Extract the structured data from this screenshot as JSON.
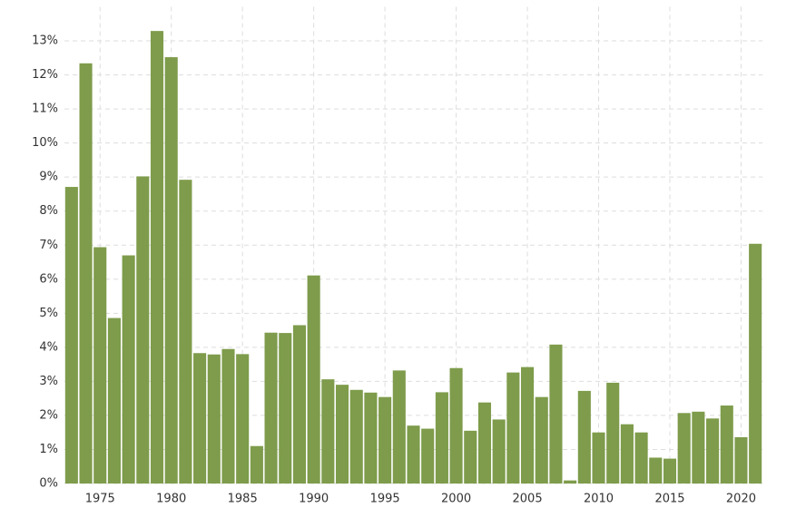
{
  "chart_data": {
    "type": "bar",
    "x": [
      1973,
      1974,
      1975,
      1976,
      1977,
      1978,
      1979,
      1980,
      1981,
      1982,
      1983,
      1984,
      1985,
      1986,
      1987,
      1988,
      1989,
      1990,
      1991,
      1992,
      1993,
      1994,
      1995,
      1996,
      1997,
      1998,
      1999,
      2000,
      2001,
      2002,
      2003,
      2004,
      2005,
      2006,
      2007,
      2008,
      2009,
      2010,
      2011,
      2012,
      2013,
      2014,
      2015,
      2016,
      2017,
      2018,
      2019,
      2020,
      2021
    ],
    "values": [
      8.71,
      12.34,
      6.94,
      4.86,
      6.7,
      9.02,
      13.29,
      12.52,
      8.92,
      3.83,
      3.79,
      3.95,
      3.8,
      1.1,
      4.43,
      4.42,
      4.65,
      6.11,
      3.06,
      2.9,
      2.75,
      2.67,
      2.54,
      3.32,
      1.7,
      1.61,
      2.68,
      3.39,
      1.55,
      2.38,
      1.88,
      3.26,
      3.42,
      2.54,
      4.08,
      0.09,
      2.72,
      1.5,
      2.96,
      1.74,
      1.5,
      0.76,
      0.73,
      2.07,
      2.11,
      1.91,
      2.29,
      1.36,
      7.04
    ],
    "color": "#7e9c4b",
    "xlim": [
      1972.5,
      2021.5
    ],
    "xticks": [
      1975,
      1980,
      1985,
      1990,
      1995,
      2000,
      2005,
      2010,
      2015,
      2020
    ],
    "ylim": [
      0,
      14
    ],
    "yticks": [
      {
        "value": 0,
        "label": "0%"
      },
      {
        "value": 1,
        "label": "1%"
      },
      {
        "value": 2,
        "label": "2%"
      },
      {
        "value": 3,
        "label": "3%"
      },
      {
        "value": 4,
        "label": "4%"
      },
      {
        "value": 5,
        "label": "5%"
      },
      {
        "value": 6,
        "label": "6%"
      },
      {
        "value": 7,
        "label": "7%"
      },
      {
        "value": 8,
        "label": "8%"
      },
      {
        "value": 9,
        "label": "9%"
      },
      {
        "value": 10,
        "label": "10%"
      },
      {
        "value": 11,
        "label": "11%"
      },
      {
        "value": 12,
        "label": "12%"
      },
      {
        "value": 13,
        "label": "13%"
      }
    ],
    "grid": true
  }
}
